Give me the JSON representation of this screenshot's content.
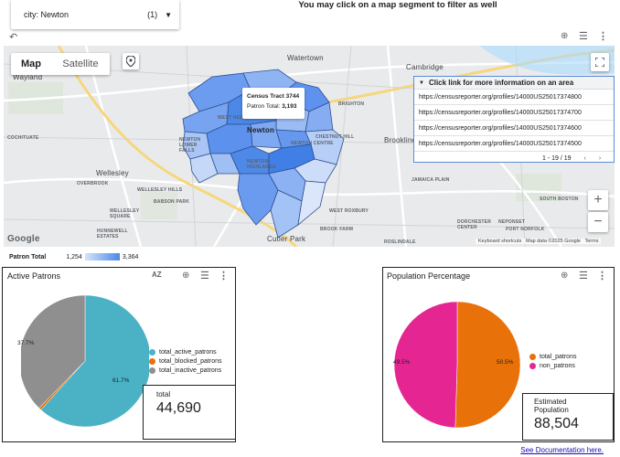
{
  "filter": {
    "label": "city: Newton",
    "count": "(1)"
  },
  "headline": "You may click on a map segment to filter as well",
  "map": {
    "toggle": {
      "map_label": "Map",
      "satellite_label": "Satellite"
    },
    "tooltip": {
      "line1": "Census Tract 3744",
      "line2_label": "Patron Total: ",
      "line2_value": "3,193"
    },
    "places_big": [
      "Wayland",
      "Watertown",
      "Cambridge",
      "Newton",
      "Wellesley",
      "Brookline"
    ],
    "places_small": [
      "WEST NEWTON",
      "NEWTON LOWER FALLS",
      "NEWTON CENTRE",
      "NEWTON HIGHLANDS",
      "CHESTNUT HILL",
      "BRIGHTON",
      "COCHITUATE",
      "OVERBROOK",
      "WELLESLEY HILLS",
      "BABSON PARK",
      "WELLESLEY SQUARE",
      "HUNNEWELL ESTATES",
      "JAMAICA PLAIN",
      "BROOK FARM",
      "DORCHESTER CENTER",
      "NEPONSET",
      "PORT NORFOLK",
      "ROSLINDALE",
      "WEST ROXBURY",
      "SOUTH BOSTON",
      "Cutler Park",
      "Google"
    ],
    "links_panel": {
      "header": "Click link for more information on an area",
      "rows": [
        "https://censusreporter.org/profiles/14000US25017374800",
        "https://censusreporter.org/profiles/14000US25017374700",
        "https://censusreporter.org/profiles/14000US25017374600",
        "https://censusreporter.org/profiles/14000US25017374500"
      ],
      "pager": "1 - 19 / 19"
    },
    "attribution": {
      "shortcuts": "Keyboard shortcuts",
      "data": "Map data ©2025 Google",
      "terms": "Terms"
    },
    "legend": {
      "title": "Patron Total",
      "min": "1,254",
      "max": "3,364"
    }
  },
  "active_patrons": {
    "title": "Active Patrons",
    "sort_icon": "AZ",
    "labels": {
      "inactive_pct": "37.7%",
      "active_pct": "61.7%"
    },
    "legend": [
      "total_active_patrons",
      "total_blocked_patrons",
      "total_inactive_patrons"
    ],
    "colors": {
      "active": "#4bb2c5",
      "blocked": "#e8710a",
      "inactive": "#8f8f8f"
    },
    "total_label": "total",
    "total_value": "44,690"
  },
  "population": {
    "title": "Population Percentage",
    "labels": {
      "non_pct": "49.5%",
      "patrons_pct": "50.5%"
    },
    "legend": [
      "total_patrons",
      "non_patrons"
    ],
    "colors": {
      "patrons": "#e8710a",
      "non": "#e52592"
    },
    "total_label": "Estimated Population",
    "total_value": "88,504"
  },
  "chart_data": [
    {
      "type": "pie",
      "categories": [
        "total_active_patrons",
        "total_blocked_patrons",
        "total_inactive_patrons"
      ],
      "values": [
        61.7,
        0.6,
        37.7
      ],
      "title": "Active Patrons",
      "legend": "right"
    },
    {
      "type": "pie",
      "categories": [
        "total_patrons",
        "non_patrons"
      ],
      "values": [
        50.5,
        49.5
      ],
      "title": "Population Percentage",
      "legend": "right"
    }
  ],
  "doc_link": "See Documentation here."
}
